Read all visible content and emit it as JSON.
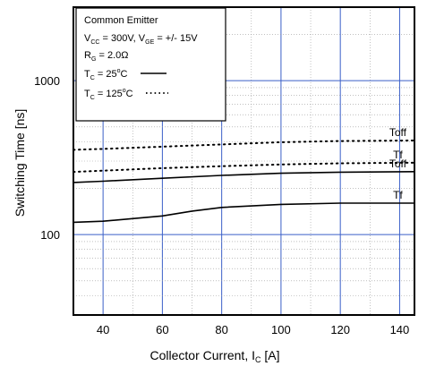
{
  "chart_data": {
    "type": "line",
    "ylabel_text": "Switching Time [ns]",
    "xlabel_main": "Collector Current, I",
    "xlabel_sub": "C",
    "xlabel_unit": " [A]",
    "xlim": [
      30,
      145
    ],
    "ylim": [
      30,
      3000
    ],
    "y_scale": "log",
    "grid": true,
    "x_ticks": [
      40,
      60,
      80,
      100,
      120,
      140
    ],
    "y_ticks": [
      100,
      1000
    ],
    "legend": {
      "position": "top-left",
      "title": "Common Emitter",
      "line2": {
        "v": "V",
        "cc": "CC",
        "a": " = 300V, V",
        "ge": "GE",
        "b": " = +/- 15V"
      },
      "line3": {
        "r": "R",
        "g": "G",
        "rest": " = 2.0Ω"
      },
      "solid": {
        "t": "T",
        "c": "C",
        "rest": " = 25",
        "deg": "o",
        "unit": "C"
      },
      "dotted": {
        "t": "T",
        "c": "C",
        "rest": " = 125",
        "deg": "o",
        "unit": "C"
      }
    },
    "series": [
      {
        "name": "Toff",
        "line_style": "dotted",
        "x": [
          30,
          40,
          60,
          80,
          100,
          120,
          145
        ],
        "y": [
          355,
          360,
          372,
          385,
          398,
          405,
          408
        ]
      },
      {
        "name": "Tf",
        "line_style": "dotted",
        "x": [
          30,
          40,
          60,
          80,
          100,
          120,
          145
        ],
        "y": [
          255,
          260,
          270,
          278,
          285,
          290,
          293
        ]
      },
      {
        "name": "Toff",
        "line_style": "solid",
        "x": [
          30,
          40,
          60,
          80,
          100,
          120,
          145
        ],
        "y": [
          218,
          222,
          232,
          242,
          250,
          254,
          256
        ]
      },
      {
        "name": "Tf",
        "line_style": "solid",
        "x": [
          30,
          40,
          60,
          70,
          80,
          100,
          120,
          145
        ],
        "y": [
          120,
          122,
          132,
          142,
          150,
          157,
          160,
          160
        ]
      }
    ],
    "annotations": [
      {
        "text": "Toff",
        "x": 140,
        "y": 408
      },
      {
        "text": "Tf",
        "x": 140,
        "y": 293
      },
      {
        "text": "Toff",
        "x": 140,
        "y": 256
      },
      {
        "text": "Tf",
        "x": 140,
        "y": 160
      }
    ]
  }
}
